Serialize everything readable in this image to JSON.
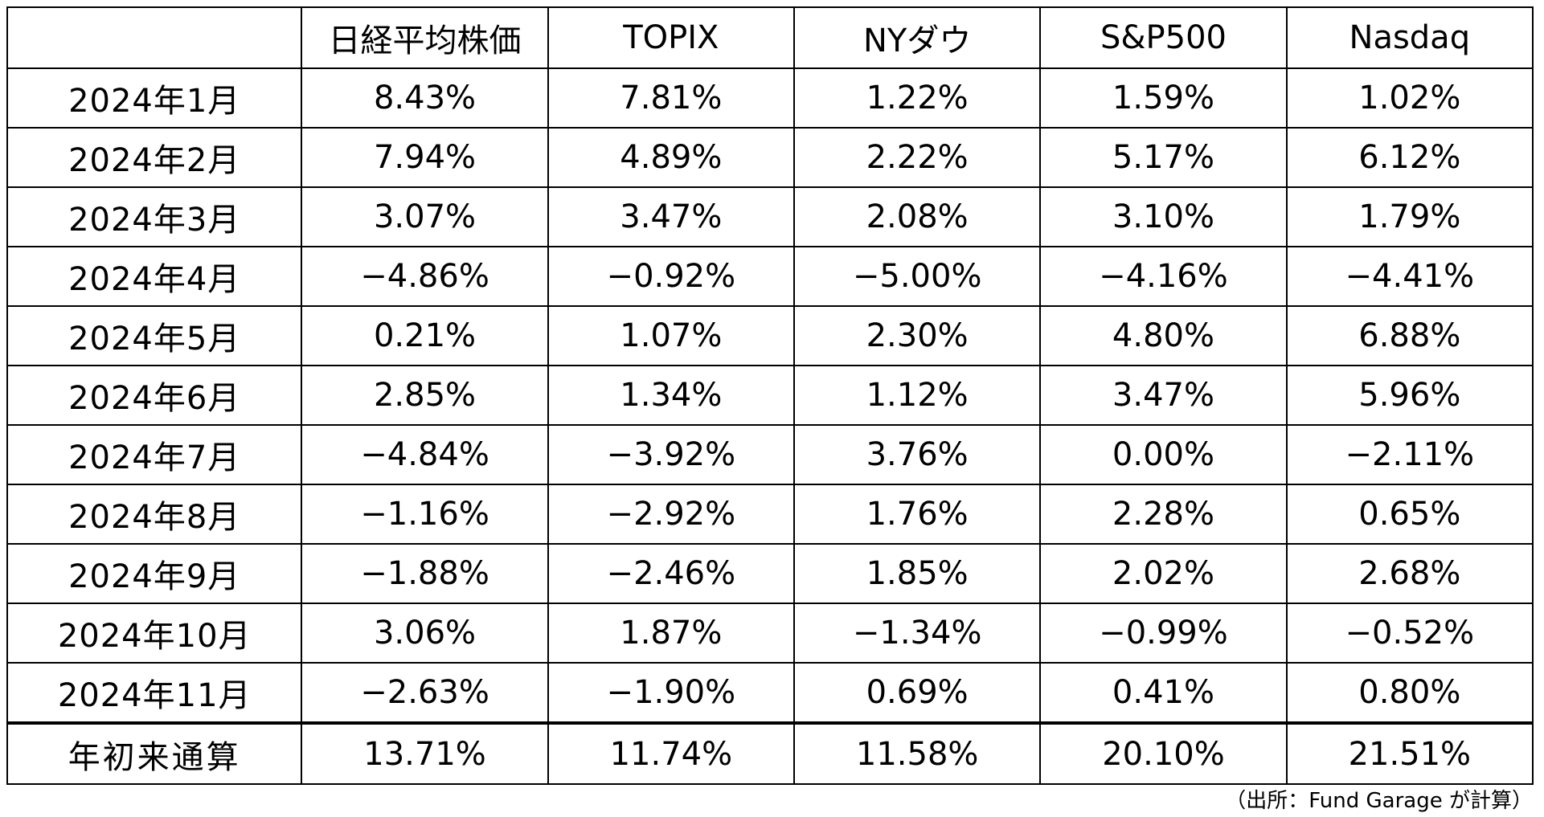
{
  "table": {
    "headers": [
      "",
      "日経平均株価",
      "TOPIX",
      "NYダウ",
      "S&P500",
      "Nasdaq"
    ],
    "rows": [
      {
        "label": "2024年1月",
        "values": [
          "8.43%",
          "7.81%",
          "1.22%",
          "1.59%",
          "1.02%"
        ]
      },
      {
        "label": "2024年2月",
        "values": [
          "7.94%",
          "4.89%",
          "2.22%",
          "5.17%",
          "6.12%"
        ]
      },
      {
        "label": "2024年3月",
        "values": [
          "3.07%",
          "3.47%",
          "2.08%",
          "3.10%",
          "1.79%"
        ]
      },
      {
        "label": "2024年4月",
        "values": [
          "−4.86%",
          "−0.92%",
          "−5.00%",
          "−4.16%",
          "−4.41%"
        ]
      },
      {
        "label": "2024年5月",
        "values": [
          "0.21%",
          "1.07%",
          "2.30%",
          "4.80%",
          "6.88%"
        ]
      },
      {
        "label": "2024年6月",
        "values": [
          "2.85%",
          "1.34%",
          "1.12%",
          "3.47%",
          "5.96%"
        ]
      },
      {
        "label": "2024年7月",
        "values": [
          "−4.84%",
          "−3.92%",
          "3.76%",
          "0.00%",
          "−2.11%"
        ]
      },
      {
        "label": "2024年8月",
        "values": [
          "−1.16%",
          "−2.92%",
          "1.76%",
          "2.28%",
          "0.65%"
        ]
      },
      {
        "label": "2024年9月",
        "values": [
          "−1.88%",
          "−2.46%",
          "1.85%",
          "2.02%",
          "2.68%"
        ]
      },
      {
        "label": "2024年10月",
        "values": [
          "3.06%",
          "1.87%",
          "−1.34%",
          "−0.99%",
          "−0.52%"
        ]
      },
      {
        "label": "2024年11月",
        "values": [
          "−2.63%",
          "−1.90%",
          "0.69%",
          "0.41%",
          "0.80%"
        ]
      }
    ],
    "total": {
      "label": "年初来通算",
      "values": [
        "13.71%",
        "11.74%",
        "11.58%",
        "20.10%",
        "21.51%"
      ]
    }
  },
  "source_note": "（出所：Fund Garage が計算）"
}
